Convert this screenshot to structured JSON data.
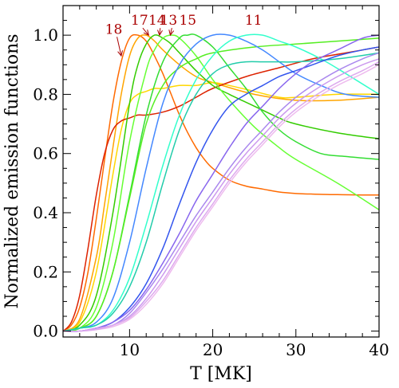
{
  "chart_data": {
    "type": "line",
    "xlabel": "T [MK]",
    "ylabel": "Normalized emission functions",
    "xlim": [
      2,
      40
    ],
    "ylim": [
      -0.02,
      1.1
    ],
    "xticks": [
      10,
      20,
      30,
      40
    ],
    "yticks": [
      0.0,
      0.2,
      0.4,
      0.6,
      0.8,
      1.0
    ],
    "ytick_labels": [
      "0.0",
      "0.2",
      "0.4",
      "0.6",
      "0.8",
      "1.0"
    ],
    "grid": false,
    "legend": "none",
    "series": [
      {
        "color": "#ff6a00",
        "x": [
          2,
          3,
          4,
          5,
          6,
          7,
          8,
          9,
          10,
          11,
          12,
          13,
          14,
          15,
          16,
          17,
          18,
          19,
          20,
          22,
          24,
          26,
          28,
          30,
          32,
          35,
          38,
          40
        ],
        "y": [
          0.0,
          0.02,
          0.08,
          0.2,
          0.38,
          0.58,
          0.77,
          0.91,
          0.99,
          1.0,
          0.98,
          0.93,
          0.87,
          0.8,
          0.73,
          0.67,
          0.62,
          0.58,
          0.55,
          0.51,
          0.49,
          0.48,
          0.47,
          0.465,
          0.463,
          0.461,
          0.46,
          0.46
        ]
      },
      {
        "color": "#ffa500",
        "x": [
          2,
          4,
          6,
          7,
          8,
          9,
          10,
          11,
          12,
          13,
          14,
          16,
          18,
          20,
          25,
          30,
          35,
          40
        ],
        "y": [
          0.0,
          0.04,
          0.25,
          0.43,
          0.62,
          0.8,
          0.93,
          0.99,
          1.0,
          0.98,
          0.95,
          0.9,
          0.86,
          0.84,
          0.8,
          0.78,
          0.78,
          0.79
        ]
      },
      {
        "color": "#ffd700",
        "x": [
          2,
          4,
          6,
          8,
          9,
          10,
          11,
          12,
          13,
          14,
          16,
          18,
          20,
          22,
          25,
          28,
          30,
          35,
          40
        ],
        "y": [
          0.0,
          0.03,
          0.2,
          0.53,
          0.68,
          0.77,
          0.8,
          0.81,
          0.82,
          0.82,
          0.83,
          0.83,
          0.84,
          0.83,
          0.81,
          0.79,
          0.79,
          0.8,
          0.8
        ]
      },
      {
        "color": "#dd2200",
        "x": [
          2,
          3,
          4,
          5,
          6,
          7,
          8,
          9,
          10,
          11,
          12,
          14,
          16,
          18,
          20,
          24,
          28,
          32,
          36,
          40
        ],
        "y": [
          0.0,
          0.03,
          0.12,
          0.28,
          0.46,
          0.6,
          0.68,
          0.71,
          0.72,
          0.73,
          0.73,
          0.74,
          0.76,
          0.79,
          0.82,
          0.86,
          0.89,
          0.92,
          0.94,
          0.96
        ]
      },
      {
        "color": "#33cc00",
        "x": [
          2,
          4,
          6,
          8,
          10,
          11,
          12,
          13,
          14,
          15,
          16,
          18,
          20,
          22,
          25,
          28,
          30,
          35,
          40
        ],
        "y": [
          0.0,
          0.02,
          0.12,
          0.4,
          0.77,
          0.9,
          0.97,
          1.0,
          0.99,
          0.97,
          0.94,
          0.88,
          0.83,
          0.8,
          0.76,
          0.72,
          0.7,
          0.67,
          0.65
        ]
      },
      {
        "color": "#66ff33",
        "x": [
          2,
          4,
          6,
          8,
          10,
          12,
          13,
          14,
          15,
          16,
          18,
          20,
          22,
          25,
          28,
          30,
          35,
          40
        ],
        "y": [
          0.0,
          0.01,
          0.08,
          0.3,
          0.64,
          0.88,
          0.95,
          0.99,
          1.0,
          0.99,
          0.93,
          0.85,
          0.78,
          0.69,
          0.62,
          0.58,
          0.5,
          0.41
        ]
      },
      {
        "color": "#33dd33",
        "x": [
          2,
          4,
          6,
          8,
          10,
          12,
          14,
          16,
          17,
          18,
          20,
          22,
          24,
          26,
          28,
          30,
          33,
          36,
          40
        ],
        "y": [
          0.0,
          0.01,
          0.05,
          0.2,
          0.46,
          0.73,
          0.91,
          0.99,
          1.0,
          1.0,
          0.96,
          0.89,
          0.82,
          0.74,
          0.68,
          0.64,
          0.6,
          0.59,
          0.58
        ]
      },
      {
        "color": "#55ee22",
        "x": [
          2,
          4,
          6,
          8,
          10,
          12,
          14,
          16,
          18,
          20,
          25,
          30,
          35,
          40
        ],
        "y": [
          0.0,
          0.01,
          0.05,
          0.2,
          0.45,
          0.7,
          0.83,
          0.89,
          0.92,
          0.94,
          0.96,
          0.97,
          0.98,
          0.99
        ]
      },
      {
        "color": "#4488ff",
        "x": [
          2,
          4,
          6,
          8,
          10,
          12,
          14,
          16,
          18,
          20,
          22,
          24,
          26,
          28,
          30,
          33,
          36,
          40
        ],
        "y": [
          0.0,
          0.01,
          0.03,
          0.11,
          0.3,
          0.55,
          0.77,
          0.9,
          0.97,
          1.0,
          1.0,
          0.98,
          0.95,
          0.91,
          0.87,
          0.83,
          0.8,
          0.79
        ]
      },
      {
        "color": "#33ffcc",
        "x": [
          2,
          4,
          6,
          8,
          10,
          12,
          14,
          16,
          18,
          20,
          22,
          24,
          26,
          28,
          30,
          33,
          36,
          40
        ],
        "y": [
          0.0,
          0.01,
          0.02,
          0.07,
          0.18,
          0.36,
          0.56,
          0.73,
          0.85,
          0.93,
          0.98,
          1.0,
          1.0,
          0.98,
          0.96,
          0.92,
          0.87,
          0.8
        ]
      },
      {
        "color": "#22ccaa",
        "x": [
          2,
          4,
          6,
          8,
          10,
          12,
          14,
          16,
          18,
          20,
          22,
          24,
          26,
          28,
          30,
          35,
          40
        ],
        "y": [
          0.0,
          0.01,
          0.02,
          0.06,
          0.15,
          0.3,
          0.5,
          0.68,
          0.8,
          0.87,
          0.9,
          0.91,
          0.91,
          0.91,
          0.91,
          0.92,
          0.94
        ]
      },
      {
        "color": "#3355ee",
        "x": [
          2,
          4,
          6,
          8,
          10,
          12,
          14,
          16,
          18,
          20,
          22,
          24,
          26,
          28,
          30,
          32,
          35,
          38,
          40
        ],
        "y": [
          0.0,
          0.0,
          0.01,
          0.03,
          0.08,
          0.16,
          0.28,
          0.43,
          0.57,
          0.68,
          0.76,
          0.8,
          0.83,
          0.86,
          0.88,
          0.9,
          0.93,
          0.95,
          0.96
        ]
      },
      {
        "color": "#8866ee",
        "x": [
          2,
          4,
          6,
          8,
          10,
          12,
          14,
          16,
          18,
          20,
          22,
          24,
          26,
          28,
          30,
          32,
          35,
          38,
          40
        ],
        "y": [
          0.0,
          0.0,
          0.01,
          0.03,
          0.07,
          0.14,
          0.23,
          0.33,
          0.44,
          0.53,
          0.62,
          0.7,
          0.76,
          0.82,
          0.87,
          0.91,
          0.95,
          0.99,
          1.0
        ]
      },
      {
        "color": "#aa88ee",
        "x": [
          2,
          4,
          6,
          8,
          10,
          12,
          14,
          16,
          18,
          20,
          22,
          24,
          26,
          28,
          30,
          32,
          35,
          38,
          40
        ],
        "y": [
          0.0,
          0.0,
          0.01,
          0.02,
          0.06,
          0.13,
          0.21,
          0.3,
          0.39,
          0.47,
          0.55,
          0.62,
          0.68,
          0.74,
          0.79,
          0.83,
          0.88,
          0.92,
          0.94
        ]
      },
      {
        "color": "#cc99ee",
        "x": [
          2,
          4,
          6,
          8,
          10,
          12,
          14,
          16,
          18,
          20,
          22,
          24,
          26,
          28,
          30,
          32,
          35,
          38,
          40
        ],
        "y": [
          0.0,
          0.0,
          0.01,
          0.02,
          0.05,
          0.11,
          0.19,
          0.28,
          0.37,
          0.45,
          0.53,
          0.6,
          0.66,
          0.72,
          0.77,
          0.81,
          0.86,
          0.9,
          0.92
        ]
      },
      {
        "color": "#eebbee",
        "x": [
          2,
          4,
          6,
          8,
          10,
          12,
          14,
          16,
          18,
          20,
          22,
          24,
          26,
          28,
          30,
          32,
          35,
          38,
          40
        ],
        "y": [
          0.0,
          0.0,
          0.005,
          0.015,
          0.04,
          0.09,
          0.16,
          0.25,
          0.34,
          0.42,
          0.5,
          0.57,
          0.63,
          0.69,
          0.74,
          0.78,
          0.83,
          0.87,
          0.9
        ]
      },
      {
        "color": "#ddaaee",
        "x": [
          2,
          4,
          6,
          8,
          10,
          12,
          14,
          16,
          18,
          20,
          22,
          24,
          26,
          28,
          30,
          32,
          35,
          38,
          40
        ],
        "y": [
          0.0,
          0.0,
          0.005,
          0.02,
          0.045,
          0.1,
          0.17,
          0.26,
          0.35,
          0.43,
          0.51,
          0.58,
          0.64,
          0.7,
          0.75,
          0.79,
          0.84,
          0.88,
          0.91
        ]
      }
    ],
    "annotations": [
      {
        "text": "18",
        "x": 8.1,
        "y": 1.005,
        "arrow_to": [
          9.0,
          0.93
        ]
      },
      {
        "text": "17",
        "x": 11.2,
        "y": 1.035,
        "arrow_to": [
          12.3,
          1.0
        ]
      },
      {
        "text": "14",
        "x": 13.3,
        "y": 1.035,
        "arrow_to": [
          13.6,
          1.0
        ]
      },
      {
        "text": "13",
        "x": 14.7,
        "y": 1.035,
        "arrow_to": [
          14.9,
          1.0
        ]
      },
      {
        "text": "15",
        "x": 17.0,
        "y": 1.035
      },
      {
        "text": "11",
        "x": 24.9,
        "y": 1.035
      }
    ]
  }
}
